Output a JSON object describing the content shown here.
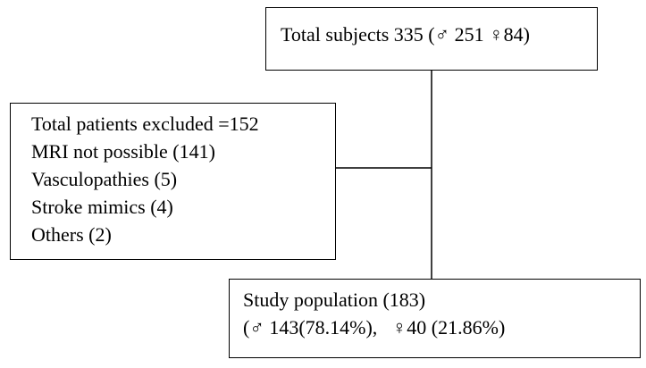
{
  "nodes": [
    {
      "lines": [
        "Total subjects 335 (♂ 251 ♀84)"
      ]
    },
    {
      "lines": [
        "Total patients excluded =152",
        "MRI not possible (141)",
        "Vasculopathies (5)",
        "Stroke mimics (4)",
        "Others (2)"
      ]
    },
    {
      "lines": [
        "Study population (183)",
        "(♂ 143(78.14%),   ♀40 (21.86%)"
      ]
    }
  ]
}
